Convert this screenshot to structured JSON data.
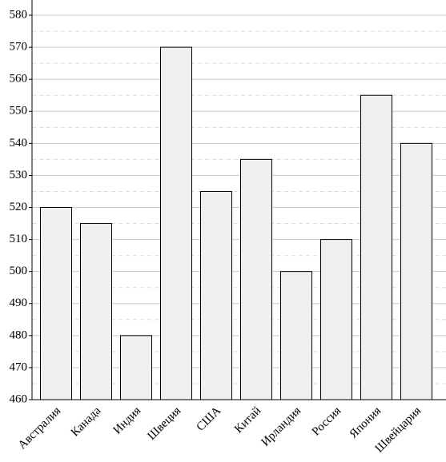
{
  "chart_data": {
    "type": "bar",
    "categories": [
      "Австралия",
      "Канада",
      "Индия",
      "Швеция",
      "США",
      "Китай",
      "Ирландия",
      "Россия",
      "Япония",
      "Швейцария"
    ],
    "values": [
      520,
      515,
      480,
      570,
      525,
      535,
      500,
      510,
      555,
      540
    ],
    "color": "#efefef",
    "ylim": [
      460,
      584
    ],
    "yticks": [
      460,
      470,
      480,
      490,
      500,
      510,
      520,
      530,
      540,
      550,
      560,
      570,
      580
    ],
    "minor_yticks": [
      465,
      475,
      485,
      495,
      505,
      515,
      525,
      535,
      545,
      555,
      565,
      575
    ],
    "grid": true
  }
}
